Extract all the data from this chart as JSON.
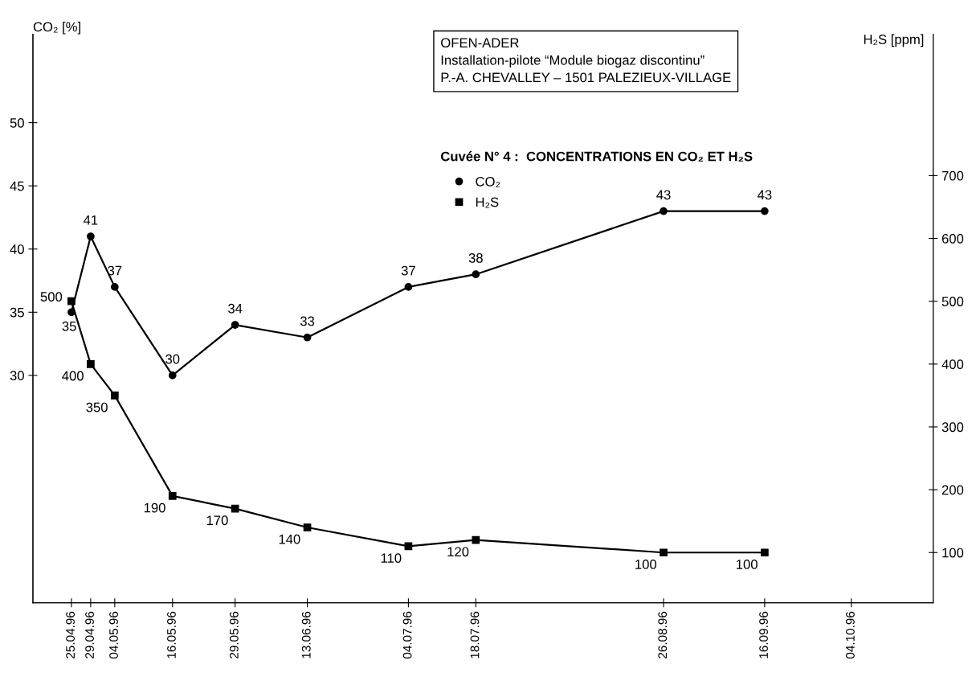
{
  "chart_data": {
    "type": "line",
    "title": "Cuvée N° 4 :  CONCENTRATIONS EN CO₂ ET H₂S",
    "annotations": [
      "OFEN-ADER\nInstallation-pilote “Module biogaz discontinu”\nP.-A. CHEVALLEY – 1501 PALEZIEUX-VILLAGE"
    ],
    "ylabel": "CO₂ [%]",
    "y2label": "H₂S [ppm]",
    "x": [
      "1996-04-25",
      "1996-04-29",
      "1996-05-04",
      "1996-05-16",
      "1996-05-29",
      "1996-06-13",
      "1996-07-04",
      "1996-07-18",
      "1996-08-26",
      "1996-09-16"
    ],
    "series": [
      {
        "name": "CO₂",
        "color": "#000000",
        "marker": "circle",
        "values": [
          35,
          41,
          37,
          30,
          34,
          33,
          37,
          38,
          43,
          43
        ]
      },
      {
        "name": "H₂S",
        "color": "#000000",
        "marker": "square",
        "axis": "y2",
        "values": [
          500,
          400,
          350,
          190,
          170,
          140,
          110,
          120,
          100,
          100
        ]
      }
    ],
    "xlim": [
      "1996-04-17",
      "1996-10-21"
    ],
    "xticks": [
      {
        "value": "1996-04-25",
        "label": "25.04.96"
      },
      {
        "value": "1996-04-29",
        "label": "29.04.96"
      },
      {
        "value": "1996-05-04",
        "label": "04.05.96"
      },
      {
        "value": "1996-05-16",
        "label": "16.05.96"
      },
      {
        "value": "1996-05-29",
        "label": "29.05.96"
      },
      {
        "value": "1996-06-13",
        "label": "13.06.96"
      },
      {
        "value": "1996-07-04",
        "label": "04.07.96"
      },
      {
        "value": "1996-07-18",
        "label": "18.07.96"
      },
      {
        "value": "1996-08-26",
        "label": "26.08.96"
      },
      {
        "value": "1996-09-16",
        "label": "16.09.96"
      },
      {
        "value": "1996-10-04",
        "label": "04.10.96"
      }
    ],
    "ylim": [
      12,
      57
    ],
    "yticks": [
      30,
      35,
      40,
      45,
      50
    ],
    "y2lim": [
      20,
      925
    ],
    "y2ticks": [
      100,
      200,
      300,
      400,
      500,
      600,
      700
    ],
    "data_labels": true,
    "grid": false,
    "legend": "top right",
    "line_style": "solid"
  }
}
